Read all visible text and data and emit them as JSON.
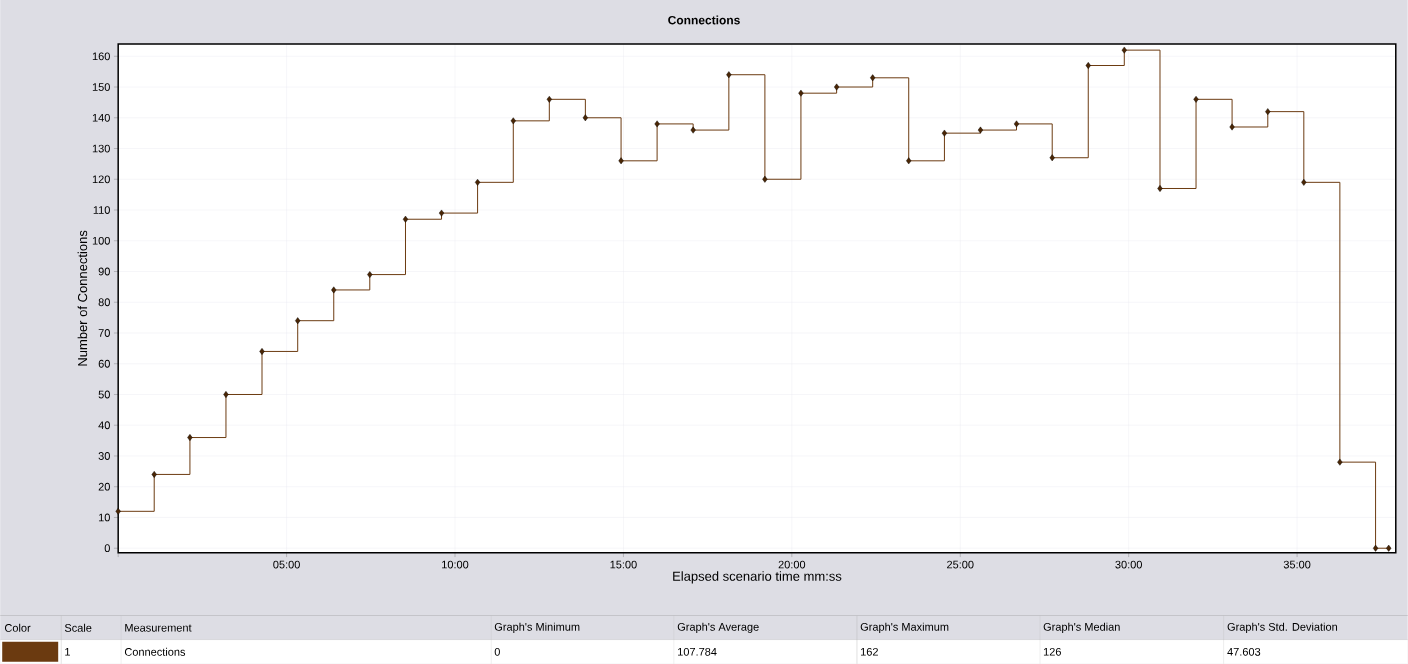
{
  "chart_data": {
    "type": "step",
    "title": "Connections",
    "xlabel": "Elapsed scenario time mm:ss",
    "ylabel": "Number of Connections",
    "x": [
      0,
      1.07,
      2.13,
      3.2,
      4.27,
      5.33,
      6.4,
      7.47,
      8.53,
      9.6,
      10.67,
      11.73,
      12.8,
      13.87,
      14.93,
      16,
      17.07,
      18.13,
      19.2,
      20.27,
      21.33,
      22.4,
      23.47,
      24.53,
      25.6,
      26.67,
      27.73,
      28.8,
      29.87,
      30.93,
      32,
      33.07,
      34.13,
      35.2,
      36.27,
      37.33,
      37.72
    ],
    "series": [
      {
        "name": "Connections",
        "color": "#6b3a10",
        "values": [
          12,
          24,
          36,
          50,
          64,
          74,
          84,
          89,
          107,
          109,
          119,
          139,
          146,
          140,
          126,
          138,
          136,
          154,
          120,
          148,
          150,
          153,
          126,
          135,
          136,
          138,
          127,
          157,
          162,
          117,
          146,
          137,
          142,
          119,
          28,
          0,
          0
        ]
      }
    ],
    "xlim": [
      0,
      37.93
    ],
    "ylim": [
      -1.5,
      164
    ],
    "xticks": [
      {
        "value": 0,
        "label": null
      },
      {
        "value": 5,
        "label": "05:00"
      },
      {
        "value": 10,
        "label": "10:00"
      },
      {
        "value": 15,
        "label": "15:00"
      },
      {
        "value": 20,
        "label": "20:00"
      },
      {
        "value": 25,
        "label": "25:00"
      },
      {
        "value": 30,
        "label": "30:00"
      },
      {
        "value": 35,
        "label": "35:00"
      }
    ],
    "yticks": [
      0,
      10,
      20,
      30,
      40,
      50,
      60,
      70,
      80,
      90,
      100,
      110,
      120,
      130,
      140,
      150,
      160
    ],
    "grid": true,
    "marker": "diamond",
    "line_style": "solid",
    "legend": "bottom",
    "annotations": [
      "Color",
      "Scale",
      "Measurement",
      "Graph's Minimum",
      "Graph's Average",
      "Graph's Maximum",
      "Graph's Median",
      "Graph's Std. Deviation",
      "1",
      "0",
      "107.784",
      "162",
      "126",
      "47.603"
    ]
  }
}
